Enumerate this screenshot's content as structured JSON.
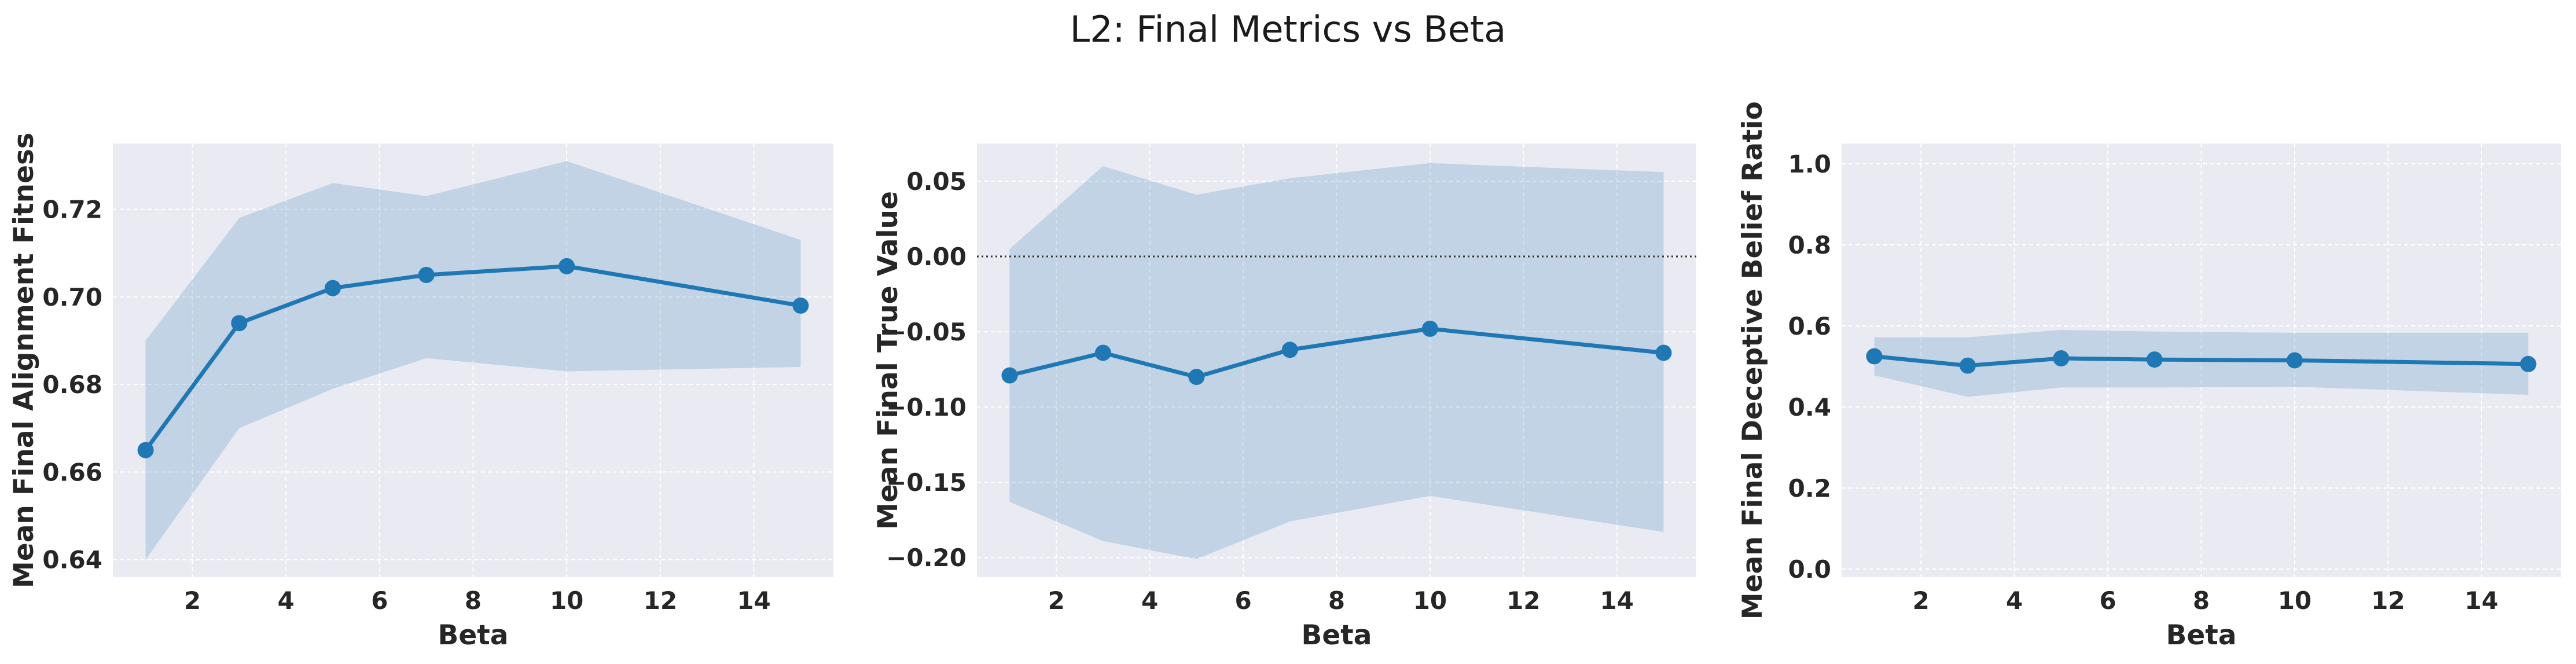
{
  "figure": {
    "title": "L2: Final Metrics vs Beta"
  },
  "colors": {
    "line": "#1f77b4",
    "band": "#1f77b4",
    "plot_bg": "#eaeaf2",
    "grid": "#ffffff",
    "zero_line": "#333333"
  },
  "chart_data": [
    {
      "type": "line",
      "title": "",
      "xlabel": "Beta",
      "ylabel": "Mean Final Alignment Fitness",
      "x": [
        1,
        3,
        5,
        7,
        10,
        15
      ],
      "series": [
        {
          "name": "mean",
          "values": [
            0.665,
            0.694,
            0.702,
            0.705,
            0.707,
            0.698
          ]
        }
      ],
      "band_lower": [
        0.64,
        0.67,
        0.679,
        0.686,
        0.683,
        0.684
      ],
      "band_upper": [
        0.69,
        0.718,
        0.726,
        0.723,
        0.731,
        0.713
      ],
      "xlim": [
        0.3,
        15.7
      ],
      "ylim": [
        0.636,
        0.735
      ],
      "xticks": [
        2,
        4,
        6,
        8,
        10,
        12,
        14
      ],
      "yticks": [
        0.64,
        0.66,
        0.68,
        0.7,
        0.72
      ],
      "ytick_labels": [
        "0.64",
        "0.66",
        "0.68",
        "0.70",
        "0.72"
      ],
      "grid": true
    },
    {
      "type": "line",
      "title": "",
      "xlabel": "Beta",
      "ylabel": "Mean Final True Value",
      "x": [
        1,
        3,
        5,
        7,
        10,
        15
      ],
      "series": [
        {
          "name": "mean",
          "values": [
            -0.079,
            -0.064,
            -0.08,
            -0.062,
            -0.048,
            -0.064
          ]
        }
      ],
      "band_lower": [
        -0.163,
        -0.189,
        -0.201,
        -0.176,
        -0.159,
        -0.183
      ],
      "band_upper": [
        0.005,
        0.06,
        0.041,
        0.052,
        0.062,
        0.056
      ],
      "reference_line": {
        "y": 0.0,
        "style": "dotted"
      },
      "xlim": [
        0.3,
        15.7
      ],
      "ylim": [
        -0.213,
        0.075
      ],
      "xticks": [
        2,
        4,
        6,
        8,
        10,
        12,
        14
      ],
      "yticks": [
        0.05,
        0.0,
        -0.05,
        -0.1,
        -0.15,
        -0.2
      ],
      "ytick_labels": [
        "0.05",
        "0.00",
        "−0.05",
        "−0.10",
        "−0.15",
        "−0.20"
      ],
      "grid": true
    },
    {
      "type": "line",
      "title": "",
      "xlabel": "Beta",
      "ylabel": "Mean Final Deceptive Belief Ratio",
      "x": [
        1,
        3,
        5,
        7,
        10,
        15
      ],
      "series": [
        {
          "name": "mean",
          "values": [
            0.525,
            0.502,
            0.52,
            0.517,
            0.515,
            0.506
          ]
        }
      ],
      "band_lower": [
        0.478,
        0.425,
        0.448,
        0.448,
        0.45,
        0.43
      ],
      "band_upper": [
        0.572,
        0.572,
        0.59,
        0.586,
        0.583,
        0.583
      ],
      "xlim": [
        0.3,
        15.7
      ],
      "ylim": [
        -0.02,
        1.05
      ],
      "xticks": [
        2,
        4,
        6,
        8,
        10,
        12,
        14
      ],
      "yticks": [
        0.0,
        0.2,
        0.4,
        0.6,
        0.8,
        1.0
      ],
      "ytick_labels": [
        "0.0",
        "0.2",
        "0.4",
        "0.6",
        "0.8",
        "1.0"
      ],
      "grid": true
    }
  ]
}
